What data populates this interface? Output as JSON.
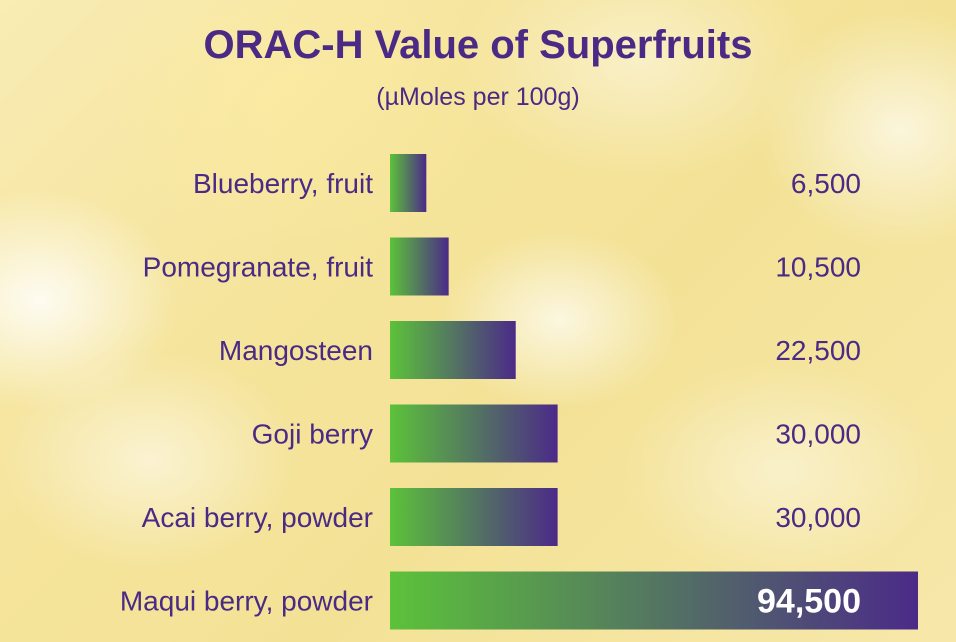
{
  "chart_data": {
    "type": "bar",
    "orientation": "horizontal",
    "title": "ORAC-H Value of Superfruits",
    "subtitle": "(µMoles per 100g)",
    "categories": [
      "Blueberry, fruit",
      "Pomegranate, fruit",
      "Mangosteen",
      "Goji berry",
      "Acai berry, powder",
      "Maqui berry, powder"
    ],
    "values": [
      6500,
      10500,
      22500,
      30000,
      30000,
      94500
    ],
    "value_labels": [
      "6,500",
      "10,500",
      "22,500",
      "30,000",
      "30,000",
      "94,500"
    ],
    "xlim": [
      0,
      94500
    ],
    "grid": false,
    "legend": "none",
    "colors": {
      "text": "#4a2a85",
      "bar_start": "#5cc23a",
      "bar_end": "#4b2a88",
      "highlight_value_text": "#ffffff"
    }
  }
}
